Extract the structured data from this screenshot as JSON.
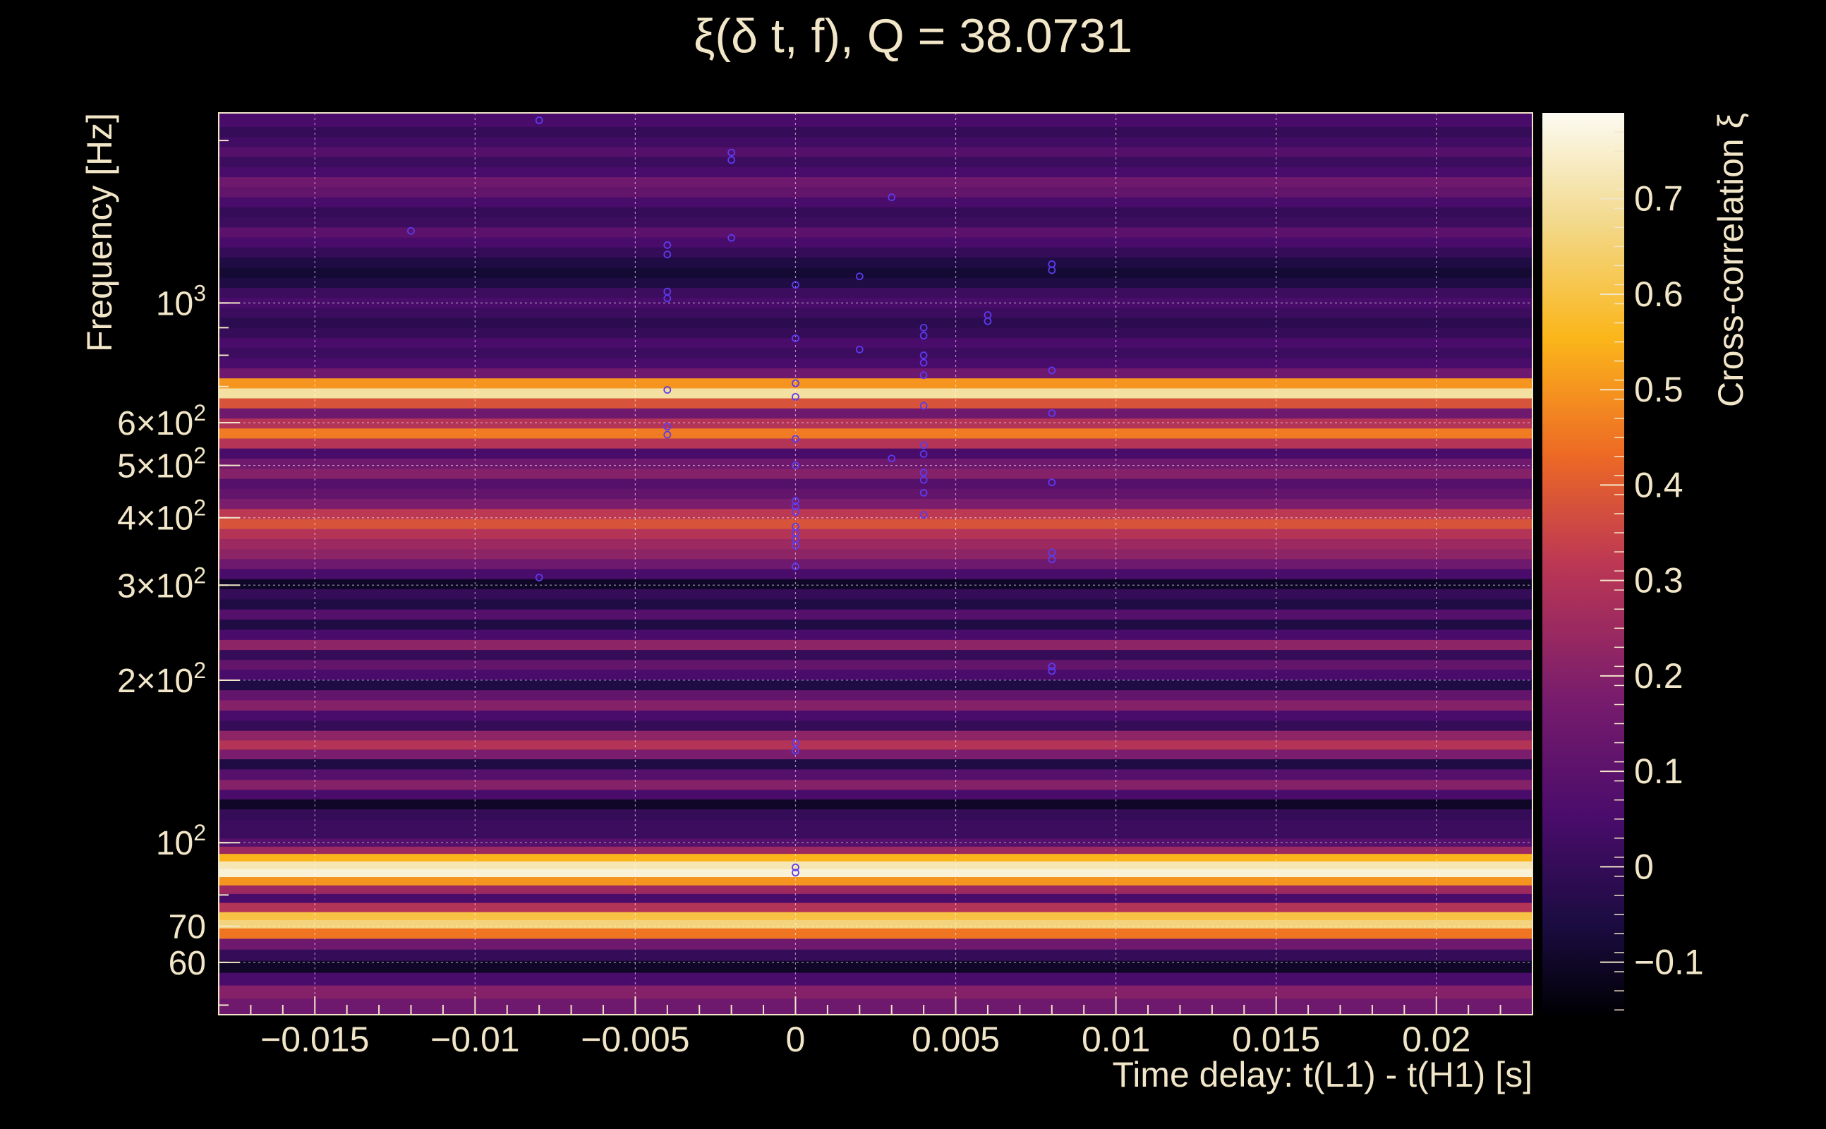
{
  "chart_data": {
    "type": "heatmap",
    "title": "ξ(δ t, f), Q = 38.0731",
    "xlabel": "Time delay: t(L1) - t(H1) [s]",
    "ylabel": "Frequency [Hz]",
    "colorbar_label": "Cross-correlation ξ",
    "xlim": [
      -0.018,
      0.023
    ],
    "ylim": [
      48,
      2250
    ],
    "y_scale": "log",
    "clim": [
      -0.155,
      0.79
    ],
    "grid": true,
    "x_ticks": [
      {
        "value": -0.015,
        "label": "−0.015"
      },
      {
        "value": -0.01,
        "label": "−0.01"
      },
      {
        "value": -0.005,
        "label": "−0.005"
      },
      {
        "value": 0,
        "label": "0"
      },
      {
        "value": 0.005,
        "label": "0.005"
      },
      {
        "value": 0.01,
        "label": "0.01"
      },
      {
        "value": 0.015,
        "label": "0.015"
      },
      {
        "value": 0.02,
        "label": "0.02"
      }
    ],
    "y_ticks": [
      {
        "value": 60,
        "label": "60"
      },
      {
        "value": 70,
        "label": "70"
      },
      {
        "value": 100,
        "label": "10",
        "sup": "2"
      },
      {
        "value": 200,
        "label": "2×10",
        "sup": "2"
      },
      {
        "value": 300,
        "label": "3×10",
        "sup": "2"
      },
      {
        "value": 400,
        "label": "4×10",
        "sup": "2"
      },
      {
        "value": 500,
        "label": "5×10",
        "sup": "2"
      },
      {
        "value": 600,
        "label": "6×10",
        "sup": "2"
      },
      {
        "value": 1000,
        "label": "10",
        "sup": "3"
      }
    ],
    "colorbar_ticks": [
      {
        "value": -0.1,
        "label": "−0.1"
      },
      {
        "value": 0,
        "label": "0"
      },
      {
        "value": 0.1,
        "label": "0.1"
      },
      {
        "value": 0.2,
        "label": "0.2"
      },
      {
        "value": 0.3,
        "label": "0.3"
      },
      {
        "value": 0.4,
        "label": "0.4"
      },
      {
        "value": 0.5,
        "label": "0.5"
      },
      {
        "value": 0.6,
        "label": "0.6"
      },
      {
        "value": 0.7,
        "label": "0.7"
      }
    ],
    "bands": [
      {
        "f": 50,
        "v": 0.15
      },
      {
        "f": 53,
        "v": 0.2
      },
      {
        "f": 56,
        "v": 0.05
      },
      {
        "f": 59,
        "v": -0.1
      },
      {
        "f": 62,
        "v": 0.0
      },
      {
        "f": 65,
        "v": 0.15
      },
      {
        "f": 68,
        "v": 0.45
      },
      {
        "f": 71,
        "v": 0.66
      },
      {
        "f": 73,
        "v": 0.6
      },
      {
        "f": 76,
        "v": 0.3
      },
      {
        "f": 79,
        "v": 0.05
      },
      {
        "f": 82,
        "v": 0.25
      },
      {
        "f": 85,
        "v": 0.5
      },
      {
        "f": 88,
        "v": 0.76
      },
      {
        "f": 91,
        "v": 0.72
      },
      {
        "f": 94,
        "v": 0.55
      },
      {
        "f": 97,
        "v": 0.25
      },
      {
        "f": 100,
        "v": 0.08
      },
      {
        "f": 104,
        "v": 0.02
      },
      {
        "f": 108,
        "v": 0.02
      },
      {
        "f": 113,
        "v": 0.0
      },
      {
        "f": 118,
        "v": -0.1
      },
      {
        "f": 123,
        "v": 0.05
      },
      {
        "f": 128,
        "v": 0.2
      },
      {
        "f": 134,
        "v": 0.08
      },
      {
        "f": 140,
        "v": -0.05
      },
      {
        "f": 146,
        "v": 0.18
      },
      {
        "f": 152,
        "v": 0.3
      },
      {
        "f": 158,
        "v": 0.22
      },
      {
        "f": 165,
        "v": 0.0
      },
      {
        "f": 172,
        "v": 0.05
      },
      {
        "f": 180,
        "v": 0.2
      },
      {
        "f": 188,
        "v": 0.12
      },
      {
        "f": 196,
        "v": -0.05
      },
      {
        "f": 205,
        "v": 0.05
      },
      {
        "f": 214,
        "v": 0.12
      },
      {
        "f": 223,
        "v": 0.0
      },
      {
        "f": 233,
        "v": 0.22
      },
      {
        "f": 243,
        "v": 0.05
      },
      {
        "f": 254,
        "v": -0.05
      },
      {
        "f": 265,
        "v": 0.08
      },
      {
        "f": 277,
        "v": -0.05
      },
      {
        "f": 289,
        "v": 0.0
      },
      {
        "f": 302,
        "v": -0.1
      },
      {
        "f": 315,
        "v": 0.05
      },
      {
        "f": 329,
        "v": 0.15
      },
      {
        "f": 343,
        "v": 0.22
      },
      {
        "f": 358,
        "v": 0.25
      },
      {
        "f": 374,
        "v": 0.3
      },
      {
        "f": 390,
        "v": 0.38
      },
      {
        "f": 407,
        "v": 0.32
      },
      {
        "f": 425,
        "v": 0.18
      },
      {
        "f": 444,
        "v": 0.12
      },
      {
        "f": 463,
        "v": 0.08
      },
      {
        "f": 483,
        "v": 0.2
      },
      {
        "f": 505,
        "v": 0.15
      },
      {
        "f": 527,
        "v": 0.05
      },
      {
        "f": 550,
        "v": 0.3
      },
      {
        "f": 574,
        "v": 0.46
      },
      {
        "f": 599,
        "v": 0.3
      },
      {
        "f": 625,
        "v": 0.15
      },
      {
        "f": 653,
        "v": 0.38
      },
      {
        "f": 681,
        "v": 0.7
      },
      {
        "f": 711,
        "v": 0.5
      },
      {
        "f": 742,
        "v": 0.15
      },
      {
        "f": 775,
        "v": 0.05
      },
      {
        "f": 809,
        "v": 0.02
      },
      {
        "f": 844,
        "v": 0.05
      },
      {
        "f": 881,
        "v": 0.0
      },
      {
        "f": 920,
        "v": -0.02
      },
      {
        "f": 960,
        "v": 0.02
      },
      {
        "f": 1002,
        "v": 0.05
      },
      {
        "f": 1046,
        "v": 0.02
      },
      {
        "f": 1092,
        "v": -0.05
      },
      {
        "f": 1140,
        "v": -0.08
      },
      {
        "f": 1190,
        "v": -0.05
      },
      {
        "f": 1242,
        "v": 0.0
      },
      {
        "f": 1297,
        "v": 0.05
      },
      {
        "f": 1353,
        "v": 0.1
      },
      {
        "f": 1413,
        "v": 0.02
      },
      {
        "f": 1475,
        "v": 0.0
      },
      {
        "f": 1539,
        "v": 0.05
      },
      {
        "f": 1607,
        "v": 0.12
      },
      {
        "f": 1677,
        "v": 0.15
      },
      {
        "f": 1751,
        "v": 0.05
      },
      {
        "f": 1828,
        "v": 0.02
      },
      {
        "f": 1908,
        "v": 0.08
      },
      {
        "f": 1991,
        "v": 0.03
      },
      {
        "f": 2078,
        "v": 0.0
      },
      {
        "f": 2169,
        "v": 0.05
      }
    ],
    "markers": [
      {
        "x": -0.008,
        "y": 2180
      },
      {
        "x": -0.012,
        "y": 1360
      },
      {
        "x": -0.008,
        "y": 310
      },
      {
        "x": -0.004,
        "y": 1280
      },
      {
        "x": -0.004,
        "y": 1230
      },
      {
        "x": -0.004,
        "y": 1050
      },
      {
        "x": -0.004,
        "y": 1020
      },
      {
        "x": -0.004,
        "y": 690
      },
      {
        "x": -0.004,
        "y": 590
      },
      {
        "x": -0.004,
        "y": 570
      },
      {
        "x": -0.002,
        "y": 1900
      },
      {
        "x": -0.002,
        "y": 1840
      },
      {
        "x": -0.002,
        "y": 1320
      },
      {
        "x": 0,
        "y": 1080
      },
      {
        "x": 0,
        "y": 860
      },
      {
        "x": 0,
        "y": 710
      },
      {
        "x": 0,
        "y": 670
      },
      {
        "x": 0,
        "y": 560
      },
      {
        "x": 0,
        "y": 500
      },
      {
        "x": 0,
        "y": 430
      },
      {
        "x": 0,
        "y": 420
      },
      {
        "x": 0,
        "y": 410
      },
      {
        "x": 0,
        "y": 385
      },
      {
        "x": 0,
        "y": 375
      },
      {
        "x": 0,
        "y": 365
      },
      {
        "x": 0,
        "y": 355
      },
      {
        "x": 0,
        "y": 325
      },
      {
        "x": 0,
        "y": 153
      },
      {
        "x": 0,
        "y": 148
      },
      {
        "x": 0,
        "y": 90
      },
      {
        "x": 0,
        "y": 88
      },
      {
        "x": 0.002,
        "y": 1120
      },
      {
        "x": 0.002,
        "y": 820
      },
      {
        "x": 0.003,
        "y": 1570
      },
      {
        "x": 0.003,
        "y": 515
      },
      {
        "x": 0.004,
        "y": 900
      },
      {
        "x": 0.004,
        "y": 870
      },
      {
        "x": 0.004,
        "y": 800
      },
      {
        "x": 0.004,
        "y": 775
      },
      {
        "x": 0.004,
        "y": 735
      },
      {
        "x": 0.004,
        "y": 645
      },
      {
        "x": 0.004,
        "y": 545
      },
      {
        "x": 0.004,
        "y": 525
      },
      {
        "x": 0.004,
        "y": 485
      },
      {
        "x": 0.004,
        "y": 470
      },
      {
        "x": 0.004,
        "y": 445
      },
      {
        "x": 0.004,
        "y": 405
      },
      {
        "x": 0.006,
        "y": 950
      },
      {
        "x": 0.006,
        "y": 925
      },
      {
        "x": 0.008,
        "y": 1180
      },
      {
        "x": 0.008,
        "y": 1150
      },
      {
        "x": 0.008,
        "y": 750
      },
      {
        "x": 0.008,
        "y": 625
      },
      {
        "x": 0.008,
        "y": 465
      },
      {
        "x": 0.008,
        "y": 345
      },
      {
        "x": 0.008,
        "y": 335
      },
      {
        "x": 0.008,
        "y": 212
      },
      {
        "x": 0.008,
        "y": 208
      }
    ]
  }
}
